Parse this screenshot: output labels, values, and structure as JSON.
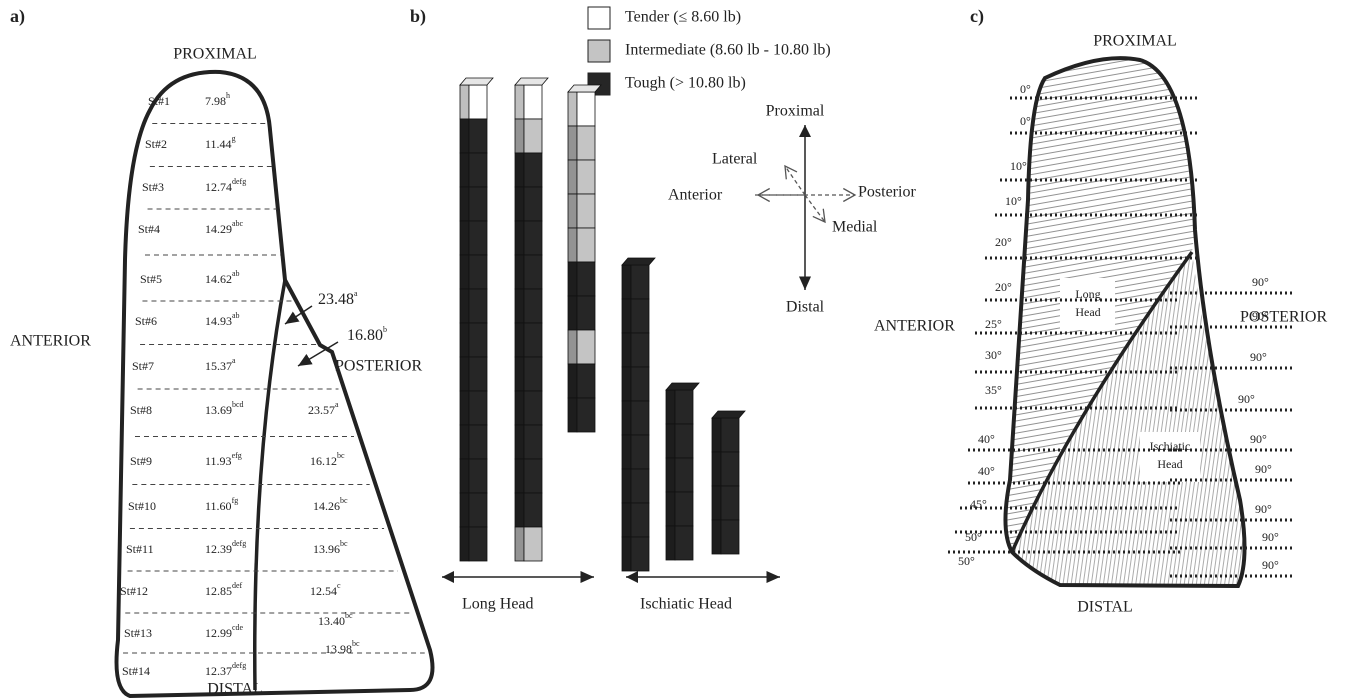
{
  "panel_a": {
    "label": "a)",
    "proximal": "PROXIMAL",
    "distal": "DISTAL",
    "anterior": "ANTERIOR",
    "posterior": "POSTERIOR",
    "steaks": [
      {
        "name": "St#1",
        "value": "7.98",
        "sup": "h"
      },
      {
        "name": "St#2",
        "value": "11.44",
        "sup": "g"
      },
      {
        "name": "St#3",
        "value": "12.74",
        "sup": "defg"
      },
      {
        "name": "St#4",
        "value": "14.29",
        "sup": "abc"
      },
      {
        "name": "St#5",
        "value": "14.62",
        "sup": "ab"
      },
      {
        "name": "St#6",
        "value": "14.93",
        "sup": "ab"
      },
      {
        "name": "St#7",
        "value": "15.37",
        "sup": "a"
      },
      {
        "name": "St#8",
        "value": "13.69",
        "sup": "bcd"
      },
      {
        "name": "St#9",
        "value": "11.93",
        "sup": "efg"
      },
      {
        "name": "St#10",
        "value": "11.60",
        "sup": "fg"
      },
      {
        "name": "St#11",
        "value": "12.39",
        "sup": "defg"
      },
      {
        "name": "St#12",
        "value": "12.85",
        "sup": "def"
      },
      {
        "name": "St#13",
        "value": "12.99",
        "sup": "cde"
      },
      {
        "name": "St#14",
        "value": "12.37",
        "sup": "defg"
      }
    ],
    "ischiatic": [
      {
        "value": "23.48",
        "sup": "a"
      },
      {
        "value": "16.80",
        "sup": "b"
      },
      {
        "value": "23.57",
        "sup": "a"
      },
      {
        "value": "16.12",
        "sup": "bc"
      },
      {
        "value": "14.26",
        "sup": "bc"
      },
      {
        "value": "13.96",
        "sup": "bc"
      },
      {
        "value": "12.54",
        "sup": "c"
      },
      {
        "value": "13.40",
        "sup": "bc"
      },
      {
        "value": "13.98",
        "sup": "bc"
      }
    ]
  },
  "panel_b": {
    "label": "b)",
    "legend": [
      {
        "label": "Tender (≤ 8.60 lb)",
        "color": "#ffffff"
      },
      {
        "label": "Intermediate (8.60 lb - 10.80 lb)",
        "color": "#c4c4c4"
      },
      {
        "label": "Tough (> 10.80 lb)",
        "color": "#262626"
      }
    ],
    "directions": {
      "proximal": "Proximal",
      "distal": "Distal",
      "lateral": "Lateral",
      "anterior": "Anterior",
      "posterior": "Posterior",
      "medial": "Medial"
    },
    "groups": [
      "Long Head",
      "Ischiatic Head"
    ]
  },
  "panel_c": {
    "label": "c)",
    "proximal": "PROXIMAL",
    "distal": "DISTAL",
    "anterior": "ANTERIOR",
    "posterior": "POSTERIOR",
    "left_angles": [
      "0°",
      "0°",
      "10°",
      "10°",
      "20°",
      "20°",
      "25°",
      "30°",
      "35°",
      "40°",
      "40°",
      "45°",
      "50°",
      "50°"
    ],
    "right_angles": [
      "90°",
      "90°",
      "90°",
      "90°",
      "90°",
      "90°",
      "90°",
      "90°",
      "90°"
    ],
    "long_head": [
      "Long",
      "Head"
    ],
    "ischiatic_head": [
      "Ischiatic",
      "Head"
    ]
  }
}
